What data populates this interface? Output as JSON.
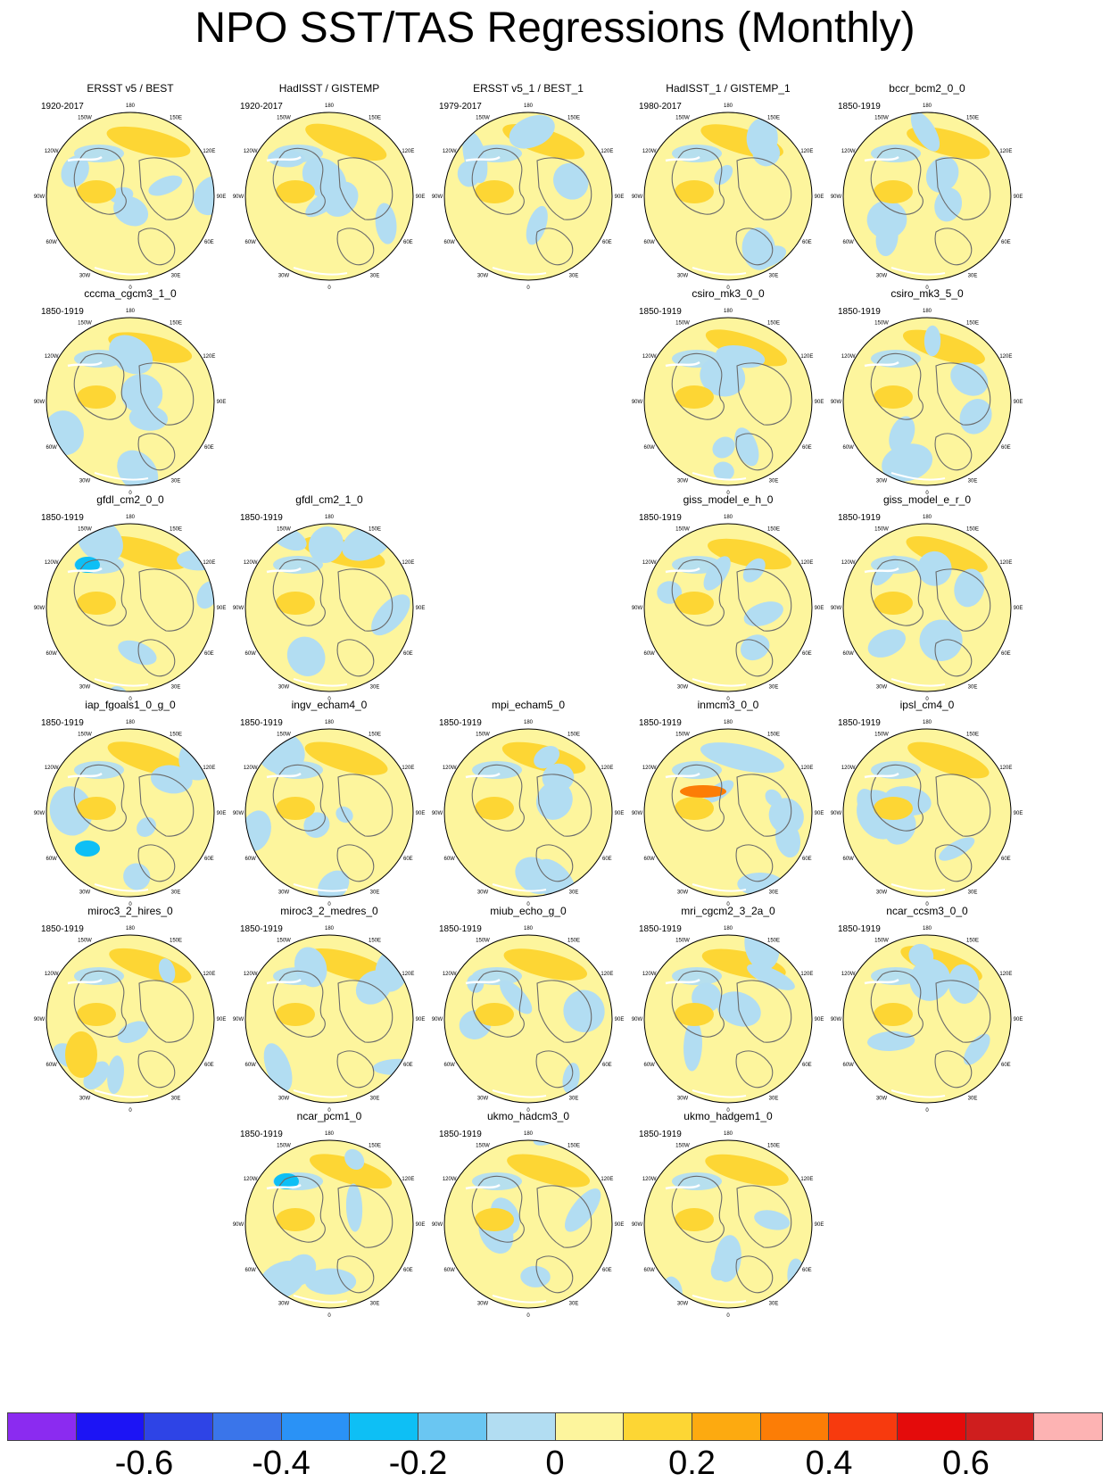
{
  "title": "NPO SST/TAS Regressions (Monthly)",
  "map_labels": {
    "top": "180",
    "bottom": "0",
    "upper_left": "150W",
    "upper_right": "150E",
    "mid_upper_left": "120W",
    "mid_upper_right": "120E",
    "left": "90W",
    "right": "90E",
    "mid_lower_left": "60W",
    "mid_lower_right": "60E",
    "lower_left": "30W",
    "lower_right": "30E"
  },
  "panels": [
    {
      "title": "ERSST v5 / BEST",
      "years": "1920-2017"
    },
    {
      "title": "HadISST / GISTEMP",
      "years": "1920-2017"
    },
    {
      "title": "ERSST v5_1 / BEST_1",
      "years": "1979-2017"
    },
    {
      "title": "HadISST_1 / GISTEMP_1",
      "years": "1980-2017"
    },
    {
      "title": "bccr_bcm2_0_0",
      "years": "1850-1919"
    },
    {
      "title": "cccma_cgcm3_1_0",
      "years": "1850-1919"
    },
    {
      "title": "csiro_mk3_0_0",
      "years": "1850-1919"
    },
    {
      "title": "csiro_mk3_5_0",
      "years": "1850-1919"
    },
    {
      "title": "gfdl_cm2_0_0",
      "years": "1850-1919"
    },
    {
      "title": "gfdl_cm2_1_0",
      "years": "1850-1919"
    },
    {
      "title": "giss_model_e_h_0",
      "years": "1850-1919"
    },
    {
      "title": "giss_model_e_r_0",
      "years": "1850-1919"
    },
    {
      "title": "iap_fgoals1_0_g_0",
      "years": "1850-1919"
    },
    {
      "title": "ingv_echam4_0",
      "years": "1850-1919"
    },
    {
      "title": "mpi_echam5_0",
      "years": "1850-1919"
    },
    {
      "title": "inmcm3_0_0",
      "years": "1850-1919"
    },
    {
      "title": "ipsl_cm4_0",
      "years": "1850-1919"
    },
    {
      "title": "miroc3_2_hires_0",
      "years": "1850-1919"
    },
    {
      "title": "miroc3_2_medres_0",
      "years": "1850-1919"
    },
    {
      "title": "miub_echo_g_0",
      "years": "1850-1919"
    },
    {
      "title": "mri_cgcm2_3_2a_0",
      "years": "1850-1919"
    },
    {
      "title": "ncar_ccsm3_0_0",
      "years": "1850-1919"
    },
    {
      "title": "ncar_pcm1_0",
      "years": "1850-1919"
    },
    {
      "title": "ukmo_hadcm3_0",
      "years": "1850-1919"
    },
    {
      "title": "ukmo_hadgem1_0",
      "years": "1850-1919"
    }
  ],
  "colorbar": {
    "colors": [
      "#8b2bf0",
      "#1c14f5",
      "#2e44e6",
      "#3a75ea",
      "#2a92f6",
      "#0ebff5",
      "#6ac6f2",
      "#b2ddf2",
      "#fdf59d",
      "#fdd634",
      "#fdaa10",
      "#fc7d06",
      "#f73a0e",
      "#e40b0b",
      "#cf1e1e",
      "#fdb3b3"
    ],
    "labels": [
      "-0.6",
      "-0.4",
      "-0.2",
      "0",
      "0.2",
      "0.4",
      "0.6"
    ]
  },
  "legend_colors": {
    "zero": "#fdf59d",
    "weak_pos": "#fdd634",
    "weak_neg": "#b2ddf2",
    "mid_neg": "#6ac6f2",
    "land_line": "#6a6a6a"
  }
}
